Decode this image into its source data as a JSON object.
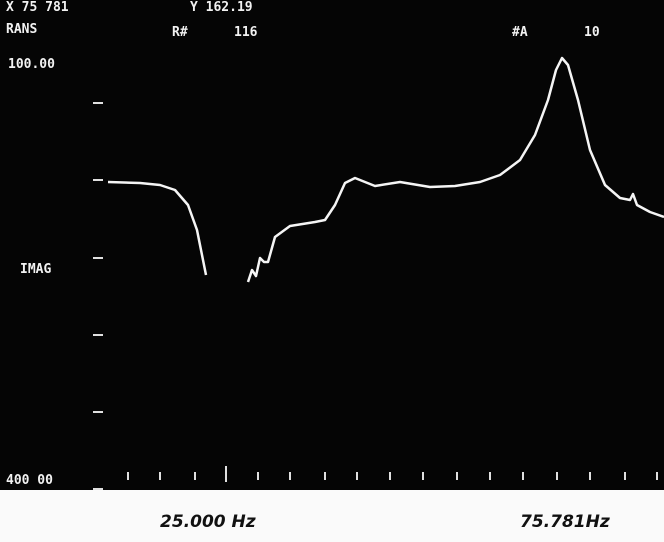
{
  "header": {
    "cursor_x": "X 75 781",
    "cursor_y": "Y 162.19",
    "mode": "RANS",
    "record_label": "R#",
    "record": "116",
    "average_label": "#A",
    "average": "10"
  },
  "axis": {
    "top": "100.00",
    "middle": "IMAG",
    "bottom": "400 00"
  },
  "footer": {
    "left": "25.000 Hz",
    "right": "75.781Hz"
  }
}
